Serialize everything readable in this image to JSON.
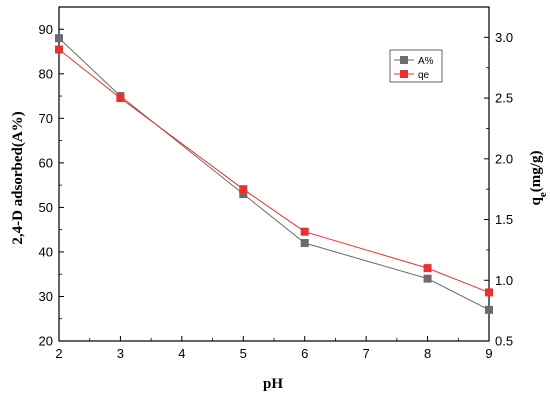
{
  "chart_data": {
    "type": "line",
    "x": [
      2,
      3,
      5,
      6,
      8,
      9
    ],
    "xlabel": "pH",
    "xlim": [
      2,
      9
    ],
    "xticks": [
      2,
      3,
      4,
      5,
      6,
      7,
      8,
      9
    ],
    "ylabel_left": "2,4-D adsorbed(A%)",
    "ylim_left": [
      20,
      95
    ],
    "yticks_left": [
      20,
      30,
      40,
      50,
      60,
      70,
      80,
      90
    ],
    "ylabel_right_main": "q",
    "ylabel_right_sub": "e",
    "ylabel_right_unit": "(mg/g)",
    "ylim_right": [
      0.5,
      3.25
    ],
    "yticks_right": [
      "0.5",
      "1.0",
      "1.5",
      "2.0",
      "2.5",
      "3.0"
    ],
    "series": [
      {
        "name": "A%",
        "axis": "left",
        "color": "#6b6b6b",
        "marker": "square",
        "values": [
          88,
          75,
          53,
          42,
          34,
          27
        ]
      },
      {
        "name": "qe",
        "axis": "right",
        "color": "#e8322f",
        "marker": "square",
        "values": [
          2.9,
          2.5,
          1.75,
          1.4,
          1.1,
          0.9
        ]
      }
    ],
    "legend_position": "top-right",
    "grid": false
  }
}
